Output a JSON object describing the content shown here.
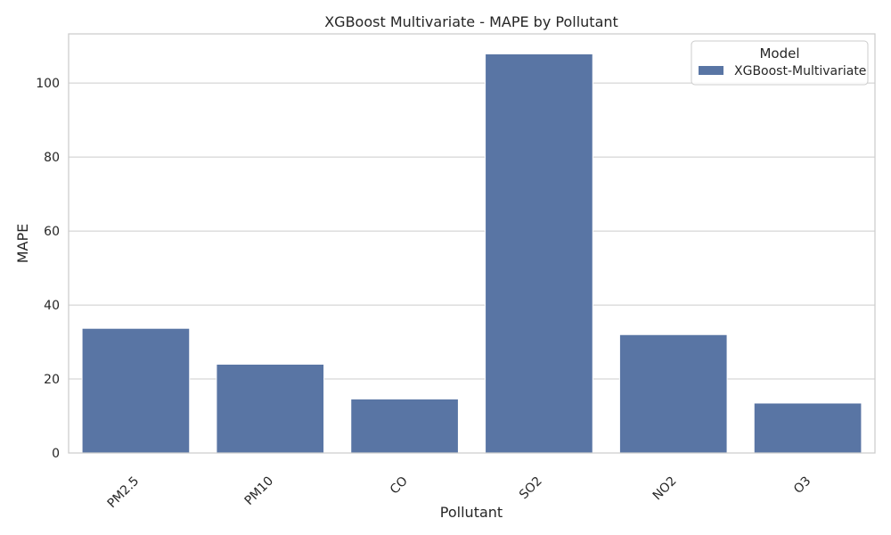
{
  "chart_data": {
    "type": "bar",
    "title": "XGBoost Multivariate - MAPE by Pollutant",
    "xlabel": "Pollutant",
    "ylabel": "MAPE",
    "categories": [
      "PM2.5",
      "PM10",
      "CO",
      "SO2",
      "NO2",
      "O3"
    ],
    "series": [
      {
        "name": "XGBoost-Multivariate",
        "values": [
          33.7,
          24.0,
          14.6,
          107.9,
          32.0,
          13.5
        ],
        "color": "#5975a4"
      }
    ],
    "ylim": [
      0,
      113.3
    ],
    "yticks": [
      0,
      20,
      40,
      60,
      80,
      100
    ],
    "grid": "y",
    "legend": {
      "title": "Model",
      "position": "top-right"
    },
    "x_tick_rotation": "45"
  }
}
